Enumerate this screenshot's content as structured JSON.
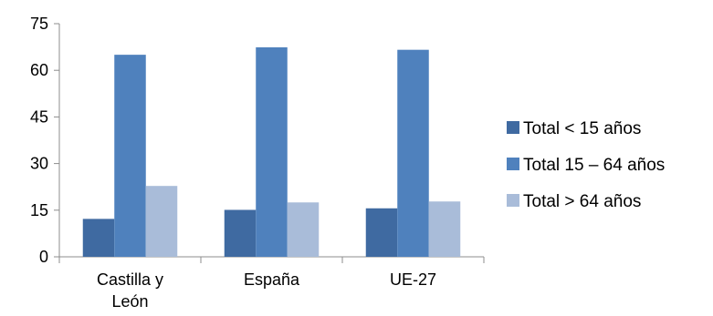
{
  "chart_data": {
    "type": "bar",
    "title": "",
    "xlabel": "",
    "ylabel": "",
    "ylim": [
      0,
      75
    ],
    "yticks": [
      0,
      15,
      30,
      45,
      60,
      75
    ],
    "grid": false,
    "legend_position": "right",
    "categories": [
      [
        "Castilla y",
        "León"
      ],
      [
        "España"
      ],
      [
        "UE-27"
      ]
    ],
    "series": [
      {
        "name": "Total < 15 años",
        "color": "#3f6aa1",
        "values": [
          12.2,
          15.1,
          15.6
        ]
      },
      {
        "name": "Total 15 – 64 años",
        "color": "#4f81bd",
        "values": [
          65.0,
          67.4,
          66.6
        ]
      },
      {
        "name": "Total > 64 años",
        "color": "#a9bcd9",
        "values": [
          22.8,
          17.5,
          17.8
        ]
      }
    ]
  }
}
